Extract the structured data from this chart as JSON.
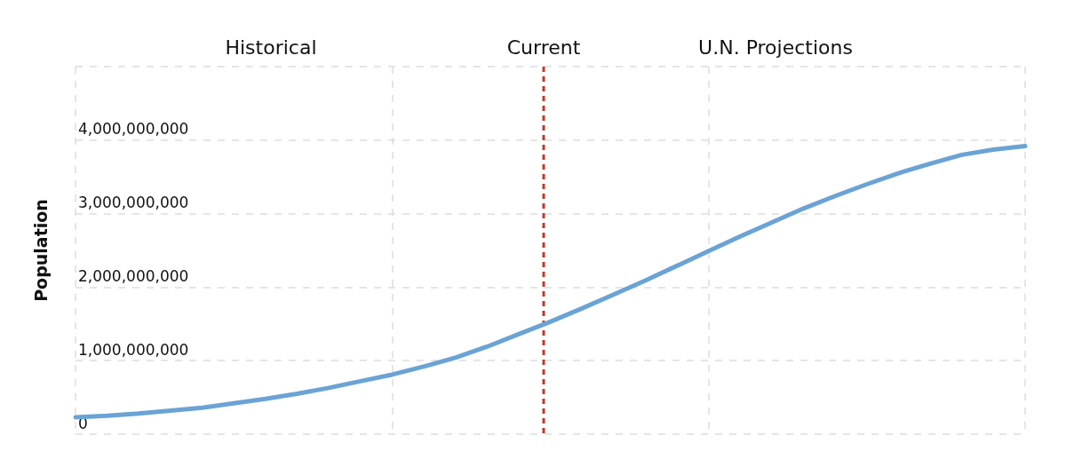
{
  "chart_data": {
    "type": "line",
    "ylabel": "Population",
    "categories": [
      null,
      null,
      null,
      null,
      null,
      null,
      null,
      null,
      null,
      null,
      null,
      null,
      null,
      null,
      null,
      null,
      null,
      null,
      null,
      null,
      null,
      null,
      null,
      null,
      null,
      null,
      null,
      null,
      null,
      null,
      null
    ],
    "series": [
      {
        "color": "#6aa3d5",
        "values": [
          230000000,
          250000000,
          280000000,
          320000000,
          360000000,
          420000000,
          480000000,
          550000000,
          630000000,
          720000000,
          810000000,
          920000000,
          1040000000,
          1190000000,
          1360000000,
          1530000000,
          1710000000,
          1900000000,
          2090000000,
          2290000000,
          2490000000,
          2690000000,
          2880000000,
          3070000000,
          3240000000,
          3400000000,
          3550000000,
          3680000000,
          3800000000,
          3870000000,
          3920000000
        ]
      }
    ],
    "ylim": [
      0,
      5000000000
    ],
    "yticks": [
      {
        "value": 0,
        "label": "0"
      },
      {
        "value": 1000000000,
        "label": "1,000,000,000"
      },
      {
        "value": 2000000000,
        "label": "2,000,000,000"
      },
      {
        "value": 3000000000,
        "label": "3,000,000,000"
      },
      {
        "value": 4000000000,
        "label": "4,000,000,000"
      },
      {
        "value": 5000000000,
        "label": null
      }
    ],
    "tick_labels": "y",
    "annotations": [
      "Historical",
      "Current",
      "U.N. Projections"
    ],
    "grid": true,
    "marker": "none",
    "line_style": "solid"
  }
}
